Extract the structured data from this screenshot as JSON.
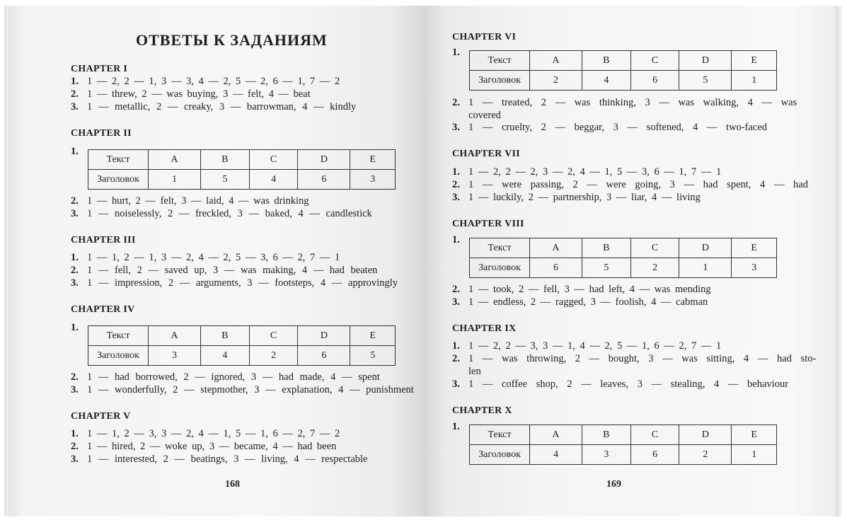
{
  "left_page": {
    "title": "ОТВЕТЫ К ЗАДАНИЯМ",
    "page_number": "168",
    "chapters": [
      {
        "heading": "CHAPTER I",
        "items": [
          {
            "num": "1.",
            "text": "1 — 2, 2 — 1, 3 — 3, 4 — 2, 5 — 2, 6 — 1, 7 — 2"
          },
          {
            "num": "2.",
            "text": "1 — threw, 2 — was buying, 3 — felt, 4 — beat"
          },
          {
            "num": "3.",
            "text": "1 — metallic, 2 — creaky, 3 — barrowman, 4 — kindly"
          }
        ]
      },
      {
        "heading": "CHAPTER II",
        "items": [
          {
            "num": "1.",
            "table": {
              "header": [
                "Текст",
                "A",
                "B",
                "C",
                "D",
                "E"
              ],
              "row": [
                "Заголовок",
                "1",
                "5",
                "4",
                "6",
                "3"
              ]
            }
          },
          {
            "num": "2.",
            "text": "1 — hurt, 2 — felt, 3 — laid, 4 — was drinking"
          },
          {
            "num": "3.",
            "text": "1 — noiselessly, 2 — freckled, 3 — baked, 4 — candlestick"
          }
        ]
      },
      {
        "heading": "CHAPTER III",
        "items": [
          {
            "num": "1.",
            "text": "1 — 1, 2 — 1, 3 — 2, 4 — 2, 5 — 3, 6 — 2, 7 — 1"
          },
          {
            "num": "2.",
            "text": "1 — fell, 2 — saved up, 3 — was making, 4 — had beaten"
          },
          {
            "num": "3.",
            "text": "1 — impression, 2 — arguments, 3 — footsteps, 4 — approvingly"
          }
        ]
      },
      {
        "heading": "CHAPTER IV",
        "items": [
          {
            "num": "1.",
            "table": {
              "header": [
                "Текст",
                "A",
                "B",
                "C",
                "D",
                "E"
              ],
              "row": [
                "Заголовок",
                "3",
                "4",
                "2",
                "6",
                "5"
              ]
            }
          },
          {
            "num": "2.",
            "text": "1 — had borrowed, 2 — ignored, 3 — had made, 4 — spent"
          },
          {
            "num": "3.",
            "text": "1 — wonderfully, 2 — stepmother, 3 — explanation, 4 — punishment"
          }
        ]
      },
      {
        "heading": "CHAPTER V",
        "items": [
          {
            "num": "1.",
            "text": "1 — 1, 2 — 3, 3 — 2, 4 — 1, 5 — 1, 6 — 2, 7 — 2"
          },
          {
            "num": "2.",
            "text": "1 — hired, 2 — woke up, 3 — became, 4 — had been"
          },
          {
            "num": "3.",
            "text": "1 — interested, 2 — beatings, 3 — living, 4 — respectable"
          }
        ]
      }
    ]
  },
  "right_page": {
    "page_number": "169",
    "chapters": [
      {
        "heading": "CHAPTER VI",
        "items": [
          {
            "num": "1.",
            "table": {
              "header": [
                "Текст",
                "A",
                "B",
                "C",
                "D",
                "E"
              ],
              "row": [
                "Заголовок",
                "2",
                "4",
                "6",
                "5",
                "1"
              ]
            }
          },
          {
            "num": "2.",
            "text": "1 — treated, 2 — was thinking, 3 — was walking, 4 — was",
            "cont": "covered"
          },
          {
            "num": "3.",
            "text": "1 — cruelty, 2 — beggar, 3 — softened, 4 — two-faced"
          }
        ]
      },
      {
        "heading": "CHAPTER VII",
        "items": [
          {
            "num": "1.",
            "text": "1 — 2, 2 — 2, 3 — 2, 4 — 1, 5 — 3, 6 — 1, 7 — 1"
          },
          {
            "num": "2.",
            "text": "1 — were passing, 2 — were going, 3 — had spent, 4 — had"
          },
          {
            "num": "3.",
            "text": "1 — luckily, 2 — partnership, 3 — liar, 4 — living"
          }
        ]
      },
      {
        "heading": "CHAPTER VIII",
        "items": [
          {
            "num": "1.",
            "table": {
              "header": [
                "Текст",
                "A",
                "B",
                "C",
                "D",
                "E"
              ],
              "row": [
                "Заголовок",
                "6",
                "5",
                "2",
                "1",
                "3"
              ]
            }
          },
          {
            "num": "2.",
            "text": "1 — took, 2 — fell, 3 — had left, 4 — was mending"
          },
          {
            "num": "3.",
            "text": "1 — endless, 2 — ragged, 3 — foolish, 4 — cabman"
          }
        ]
      },
      {
        "heading": "CHAPTER IX",
        "items": [
          {
            "num": "1.",
            "text": "1 — 2, 2 — 3, 3 — 1, 4 — 2, 5 — 1, 6 — 2, 7 — 1"
          },
          {
            "num": "2.",
            "text": "1 — was throwing, 2 — bought, 3 — was sitting, 4 — had sto-",
            "cont": "len"
          },
          {
            "num": "3.",
            "text": "1 — coffee shop, 2 — leaves, 3 — stealing, 4 — behaviour"
          }
        ]
      },
      {
        "heading": "CHAPTER X",
        "items": [
          {
            "num": "1.",
            "table": {
              "header": [
                "Текст",
                "A",
                "B",
                "C",
                "D",
                "E"
              ],
              "row": [
                "Заголовок",
                "4",
                "3",
                "6",
                "2",
                "1"
              ]
            }
          }
        ]
      }
    ]
  }
}
